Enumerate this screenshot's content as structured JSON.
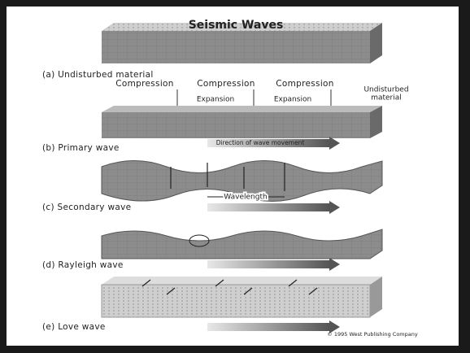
{
  "title": "Seismic Waves",
  "panels": [
    {
      "label": "(a) Undisturbed material"
    },
    {
      "label": "(b) Primary wave",
      "arrow": "Direction of wave movement"
    },
    {
      "label": "(c) Secondary wave",
      "arrow": "Wavelength"
    },
    {
      "label": "(d) Rayleigh wave"
    },
    {
      "label": "(e) Love wave"
    }
  ],
  "zones": {
    "compression": [
      "Compression",
      "Compression",
      "Compression"
    ],
    "expansion": [
      "Expansion",
      "Expansion"
    ],
    "undisturbed": [
      "Undisturbed",
      "material"
    ]
  },
  "credit": "© 1995 West Publishing Company"
}
